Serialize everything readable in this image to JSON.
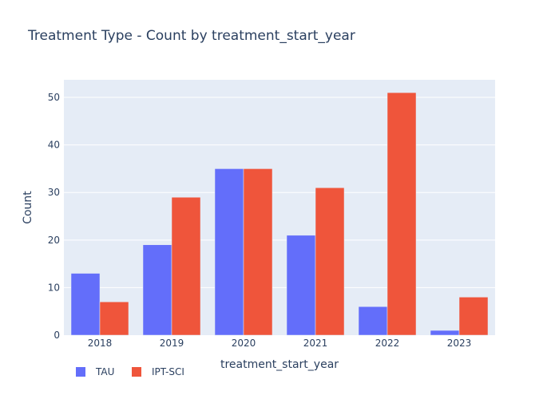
{
  "chart_data": {
    "type": "bar",
    "title": "Treatment Type - Count by treatment_start_year",
    "xlabel": "treatment_start_year",
    "ylabel": "Count",
    "categories": [
      "2018",
      "2019",
      "2020",
      "2021",
      "2022",
      "2023"
    ],
    "series": [
      {
        "name": "TAU",
        "values": [
          13,
          19,
          35,
          21,
          6,
          1
        ],
        "color": "#636efa"
      },
      {
        "name": "IPT-SCI",
        "values": [
          7,
          29,
          35,
          31,
          51,
          8
        ],
        "color": "#ef553b"
      }
    ],
    "ylim": [
      0,
      53.7
    ],
    "yticks": [
      0,
      10,
      20,
      30,
      40,
      50
    ],
    "grid": true,
    "legend_position": "bottom-left",
    "plot_background": "#e5ecf6"
  }
}
